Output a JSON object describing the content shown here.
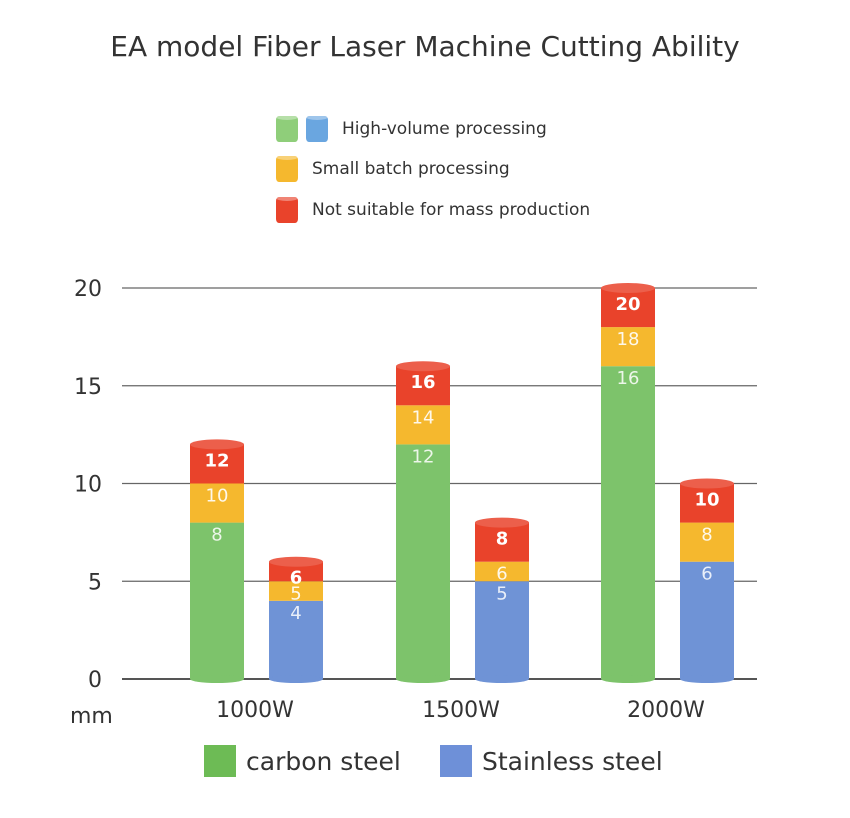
{
  "chart_data": {
    "type": "bar",
    "title": "EA model Fiber Laser Machine Cutting Ability",
    "unit_label": "mm",
    "categories": [
      "1000W",
      "1500W",
      "2000W"
    ],
    "ylim": [
      0,
      20
    ],
    "yticks": [
      0,
      5,
      10,
      15,
      20
    ],
    "grid": true,
    "series": [
      {
        "name": "carbon steel",
        "color": "#7dc36b",
        "high_volume": [
          8,
          12,
          16
        ],
        "small_batch": [
          10,
          14,
          18
        ],
        "not_suitable": [
          12,
          16,
          20
        ]
      },
      {
        "name": "Stainless steel",
        "color": "#6f93d6",
        "high_volume": [
          4,
          5,
          6
        ],
        "small_batch": [
          5,
          6,
          8
        ],
        "not_suitable": [
          6,
          8,
          10
        ]
      }
    ],
    "processing_legend": [
      {
        "label": "High-volume processing",
        "colors": [
          "#8fce7a",
          "#6aa6e0"
        ]
      },
      {
        "label": "Small batch processing",
        "colors": [
          "#f5b82e"
        ]
      },
      {
        "label": "Not suitable for mass production",
        "colors": [
          "#e9432b"
        ]
      }
    ],
    "band_colors": {
      "small_batch": "#f5b82e",
      "not_suitable": "#e9432b"
    },
    "material_legend": [
      {
        "label": "carbon steel",
        "color": "#6dbb55"
      },
      {
        "label": "Stainless steel",
        "color": "#6e90d8"
      }
    ]
  }
}
